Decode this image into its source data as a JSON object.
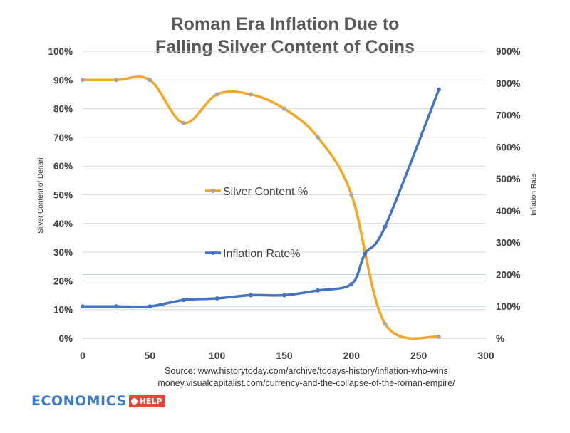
{
  "chart_data": {
    "type": "line",
    "title_lines": [
      "Roman Era Inflation Due to",
      "Falling Silver Content of Coins"
    ],
    "ylabel_left": "Silver Content of Denarii",
    "ylabel_right": "Inflation Rate",
    "x_ticks": [
      "0",
      "50",
      "100",
      "150",
      "200",
      "250",
      "300"
    ],
    "y_left_ticks": [
      "0%",
      "10%",
      "20%",
      "30%",
      "40%",
      "50%",
      "60%",
      "70%",
      "80%",
      "90%",
      "100%"
    ],
    "y_right_ticks": [
      "%",
      "100%",
      "200%",
      "300%",
      "400%",
      "500%",
      "600%",
      "700%",
      "800%",
      "900%"
    ],
    "xlim": [
      0,
      300
    ],
    "ylim_left": [
      0,
      100
    ],
    "ylim_right": [
      0,
      900
    ],
    "series": [
      {
        "name": "Silver Content %",
        "axis": "left",
        "color": "#f5a623",
        "x": [
          0,
          25,
          50,
          75,
          100,
          125,
          150,
          175,
          200,
          225,
          265
        ],
        "y": [
          90,
          90,
          90,
          75,
          85,
          85,
          80,
          70,
          50,
          5,
          0.5
        ]
      },
      {
        "name": "Inflation Rate%",
        "axis": "right",
        "color": "#4472c4",
        "x": [
          0,
          25,
          50,
          75,
          100,
          125,
          150,
          175,
          200,
          210,
          225,
          265
        ],
        "y": [
          100,
          100,
          100,
          120,
          125,
          135,
          135,
          150,
          170,
          265,
          350,
          780
        ]
      }
    ],
    "grid": true,
    "legend": [
      "Silver Content %",
      "Inflation Rate%"
    ]
  },
  "source": {
    "line1": "Source: www.historytoday.com/archive/todays-history/inflation-who-wins",
    "line2": "money.visualcapitalist.com/currency-and-the-collapse-of-the-roman-empire/"
  },
  "brand": {
    "word": "ECONOMICS",
    "badge": "HELP",
    "colors": {
      "word": "#3a78c9",
      "badge": "#e8473a"
    }
  }
}
